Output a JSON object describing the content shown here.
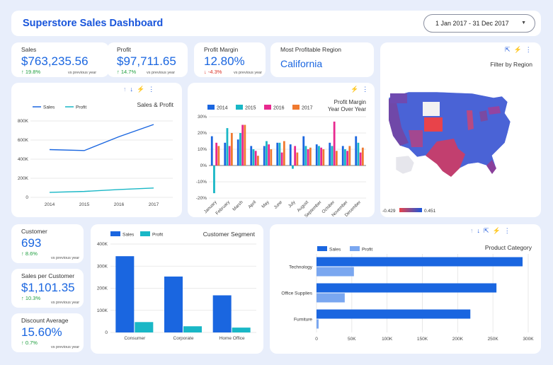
{
  "header": {
    "title": "Superstore Sales Dashboard",
    "date_range": "1 Jan 2017 - 31 Dec 2017"
  },
  "kpis": {
    "sales": {
      "label": "Sales",
      "value": "$763,235.56",
      "change": "19.8%",
      "vs": "vs previous year"
    },
    "profit": {
      "label": "Profit",
      "value": "$97,711.65",
      "change": "14.7%",
      "vs": "vs previous year"
    },
    "margin": {
      "label": "Profit Margin",
      "value": "12.80%",
      "change": "-4.3%",
      "vs": "vs previous year"
    },
    "region": {
      "label": "Most Profitable Region",
      "value": "California"
    },
    "customer": {
      "label": "Customer",
      "value": "693",
      "change": "8.6%",
      "vs": "vs previous year"
    },
    "spc": {
      "label": "Sales per Customer",
      "value": "$1,101.35",
      "change": "10.3%",
      "vs": "vs previous year"
    },
    "discount": {
      "label": "Discount Average",
      "value": "15.60%",
      "change": "0.7%",
      "vs": "vs previous year"
    }
  },
  "icons": {
    "up": "arrow-up-icon",
    "down": "arrow-down-icon",
    "bolt": "bolt-icon",
    "more": "more-vert-icon",
    "export": "export-icon"
  },
  "colors": {
    "accent": "#1a56db",
    "sales": "#1a66e0",
    "profit": "#19b7c6",
    "y2014": "#1a66e0",
    "y2015": "#19b7c6",
    "y2016": "#e8298f",
    "y2017": "#f07a30",
    "positive": "#1e9e3e",
    "negative": "#d93025"
  },
  "map": {
    "title": "Filter by Region",
    "scale_min": "-0.429",
    "scale_max": "0.451"
  },
  "chart_data": [
    {
      "id": "sales_profit",
      "type": "line",
      "title": "Sales & Profit",
      "x": [
        "2014",
        "2015",
        "2016",
        "2017"
      ],
      "series": [
        {
          "name": "Sales",
          "values": [
            500000,
            490000,
            635000,
            763000
          ]
        },
        {
          "name": "Profit",
          "values": [
            52000,
            62000,
            82000,
            97700
          ]
        }
      ],
      "ylim": [
        0,
        800000
      ],
      "yticks": [
        "0",
        "200K",
        "400K",
        "600K",
        "800K"
      ]
    },
    {
      "id": "margin_yoy",
      "type": "bar",
      "title": "Profit Margin Year Over Year",
      "categories": [
        "January",
        "February",
        "March",
        "April",
        "May",
        "June",
        "July",
        "August",
        "September",
        "October",
        "November",
        "December"
      ],
      "series": [
        {
          "name": "2014",
          "values": [
            18,
            14,
            16,
            12,
            12,
            14,
            13,
            18,
            13,
            14,
            12,
            18
          ]
        },
        {
          "name": "2015",
          "values": [
            -17,
            23,
            20,
            10,
            15,
            14,
            -2,
            12,
            12,
            12,
            10,
            14
          ]
        },
        {
          "name": "2016",
          "values": [
            14,
            12,
            25,
            9,
            13,
            8,
            12,
            10,
            11,
            27,
            9,
            8
          ]
        },
        {
          "name": "2017",
          "values": [
            12,
            20,
            25,
            6,
            10,
            15,
            8,
            11,
            10,
            9,
            12,
            11
          ]
        }
      ],
      "ylim": [
        -20,
        30
      ],
      "yticks": [
        "-20%",
        "-10%",
        "0%",
        "10%",
        "20%",
        "30%"
      ]
    },
    {
      "id": "customer_segment",
      "type": "bar",
      "title": "Customer Segment",
      "categories": [
        "Consumer",
        "Corporate",
        "Home Office"
      ],
      "series": [
        {
          "name": "Sales",
          "values": [
            345000,
            253000,
            168000
          ]
        },
        {
          "name": "Profit",
          "values": [
            47000,
            28000,
            22000
          ]
        }
      ],
      "ylim": [
        0,
        400000
      ],
      "yticks": [
        "0",
        "100K",
        "200K",
        "300K",
        "400K"
      ]
    },
    {
      "id": "product_category",
      "type": "bar",
      "title": "Product Category",
      "categories": [
        "Technology",
        "Office Supplies",
        "Furniture"
      ],
      "series": [
        {
          "name": "Sales",
          "values": [
            292000,
            255000,
            218000
          ]
        },
        {
          "name": "Profit",
          "values": [
            53000,
            40000,
            3000
          ]
        }
      ],
      "xlim": [
        0,
        300000
      ],
      "xticks": [
        "0",
        "50K",
        "100K",
        "150K",
        "200K",
        "250K",
        "300K"
      ]
    }
  ]
}
